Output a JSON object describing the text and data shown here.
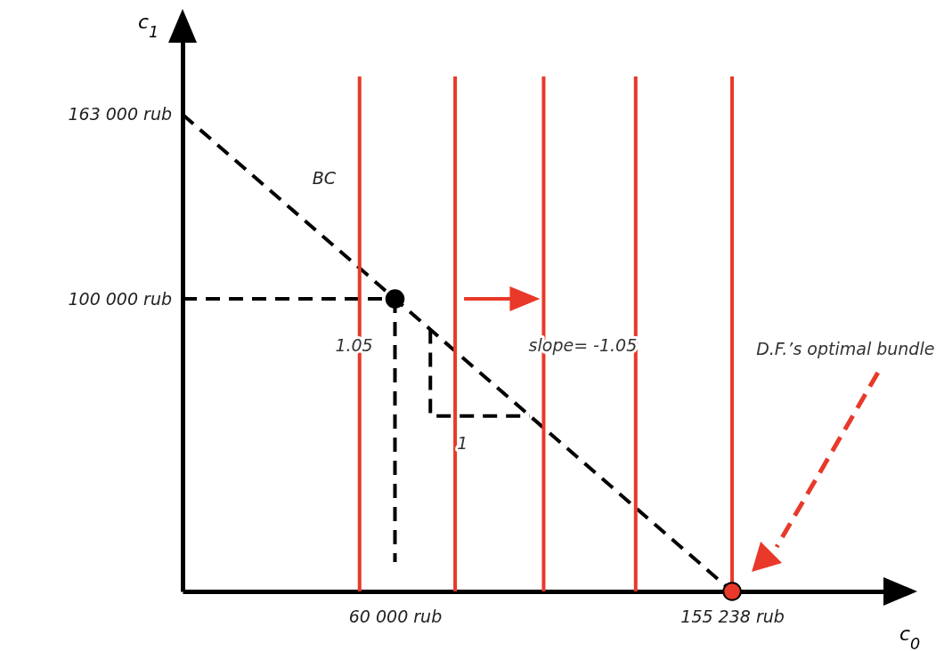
{
  "chart_data": {
    "type": "line",
    "xlabel": "c$_{0}$",
    "ylabel": "c$_{1}$",
    "xlim": [
      0,
      200000
    ],
    "ylim": [
      0,
      190000
    ],
    "xticks": [
      {
        "value": 60000,
        "label": "60 000 rub"
      },
      {
        "value": 155238,
        "label": "155 238 rub"
      }
    ],
    "yticks": [
      {
        "value": 100000,
        "label": "100 000 rub"
      },
      {
        "value": 163000,
        "label": "163 000 rub"
      }
    ],
    "series": [
      {
        "name": "BC",
        "color": "#000000",
        "line_style": "dashed",
        "x": [
          0,
          155238
        ],
        "values": [
          163000,
          0
        ]
      },
      {
        "color": "#000000",
        "line_style": "dashed",
        "x": [
          0,
          60000
        ],
        "values": [
          100000,
          100000
        ]
      },
      {
        "color": "#000000",
        "line_style": "dashed",
        "x": [
          60000,
          60000
        ],
        "values": [
          100000,
          10000
        ]
      },
      {
        "color": "#000000",
        "line_style": "dashed",
        "x": [
          70000,
          70000,
          98000
        ],
        "values": [
          89500,
          60000,
          60000
        ]
      },
      {
        "color": "#e8392a",
        "line_style": "solid",
        "x": [
          50000,
          50000
        ],
        "values": [
          0,
          176000
        ]
      },
      {
        "color": "#e8392a",
        "line_style": "solid",
        "x": [
          77000,
          77000
        ],
        "values": [
          0,
          176000
        ]
      },
      {
        "color": "#e8392a",
        "line_style": "solid",
        "x": [
          102000,
          102000
        ],
        "values": [
          0,
          176000
        ]
      },
      {
        "color": "#e8392a",
        "line_style": "solid",
        "x": [
          128000,
          128000
        ],
        "values": [
          0,
          176000
        ]
      },
      {
        "color": "#e8392a",
        "line_style": "solid",
        "x": [
          155238,
          155238
        ],
        "values": [
          0,
          176000
        ]
      },
      {
        "type": "scatter",
        "color": "#000000",
        "marker": "circle",
        "x": [
          60000
        ],
        "values": [
          100000
        ]
      },
      {
        "type": "scatter",
        "color": "#e8392a",
        "marker": "circle",
        "x": [
          155238
        ],
        "values": [
          0
        ]
      }
    ],
    "annotations": [
      "1.05",
      "1",
      "slope= -1.05",
      "D.F.’s optimal bundle"
    ]
  }
}
